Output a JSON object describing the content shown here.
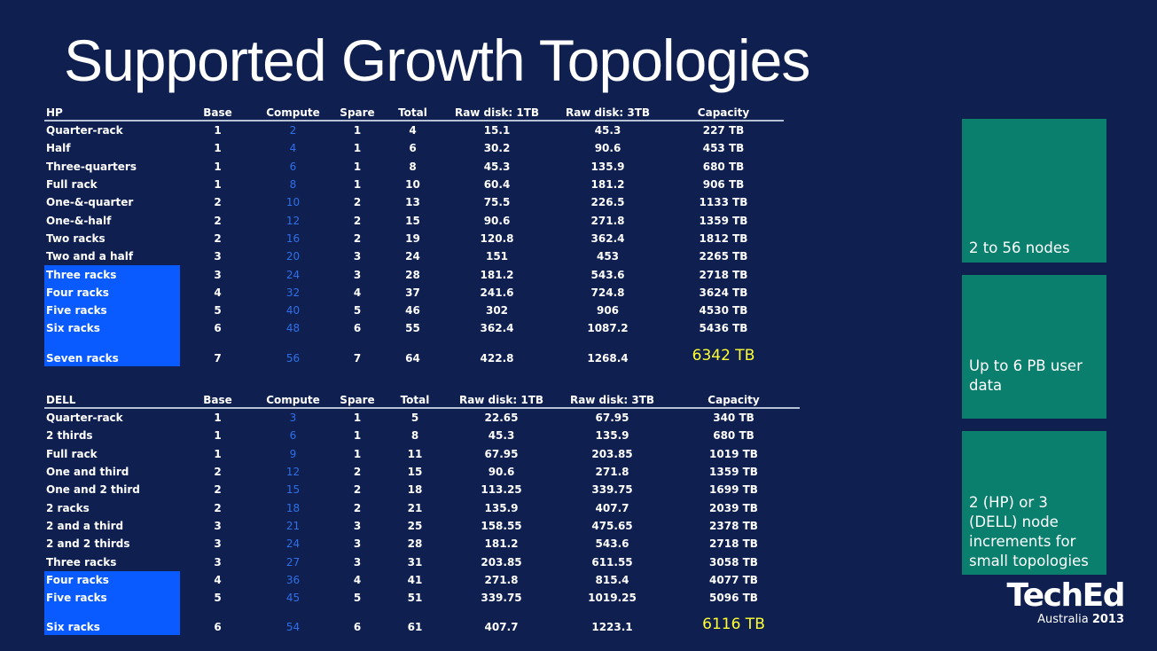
{
  "title": "Supported Growth Topologies",
  "hp": {
    "headers": [
      "HP",
      "Base",
      "Compute",
      "Spare",
      "Total",
      "Raw disk: 1TB",
      "Raw disk: 3TB",
      "Capacity"
    ],
    "rows": [
      [
        "Quarter-rack",
        "1",
        "2",
        "1",
        "4",
        "15.1",
        "45.3",
        "227 TB"
      ],
      [
        "Half",
        "1",
        "4",
        "1",
        "6",
        "30.2",
        "90.6",
        "453 TB"
      ],
      [
        "Three-quarters",
        "1",
        "6",
        "1",
        "8",
        "45.3",
        "135.9",
        "680 TB"
      ],
      [
        "Full rack",
        "1",
        "8",
        "1",
        "10",
        "60.4",
        "181.2",
        "906 TB"
      ],
      [
        "One-&-quarter",
        "2",
        "10",
        "2",
        "13",
        "75.5",
        "226.5",
        "1133 TB"
      ],
      [
        "One-&-half",
        "2",
        "12",
        "2",
        "15",
        "90.6",
        "271.8",
        "1359 TB"
      ],
      [
        "Two racks",
        "2",
        "16",
        "2",
        "19",
        "120.8",
        "362.4",
        "1812 TB"
      ],
      [
        "Two and a half",
        "3",
        "20",
        "3",
        "24",
        "151",
        "453",
        "2265 TB"
      ],
      [
        "Three racks",
        "3",
        "24",
        "3",
        "28",
        "181.2",
        "543.6",
        "2718 TB"
      ],
      [
        "Four racks",
        "4",
        "32",
        "4",
        "37",
        "241.6",
        "724.8",
        "3624 TB"
      ],
      [
        "Five racks",
        "5",
        "40",
        "5",
        "46",
        "302",
        "906",
        "4530 TB"
      ],
      [
        "Six racks",
        "6",
        "48",
        "6",
        "55",
        "362.4",
        "1087.2",
        "5436 TB"
      ],
      [
        "Seven racks",
        "7",
        "56",
        "7",
        "64",
        "422.8",
        "1268.4",
        "6342 TB"
      ]
    ]
  },
  "dell": {
    "headers": [
      "DELL",
      "Base",
      "Compute",
      "Spare",
      "Total",
      "Raw disk: 1TB",
      "Raw disk: 3TB",
      "Capacity"
    ],
    "rows": [
      [
        "Quarter-rack",
        "1",
        "3",
        "1",
        "5",
        "22.65",
        "67.95",
        "340 TB"
      ],
      [
        "2 thirds",
        "1",
        "6",
        "1",
        "8",
        "45.3",
        "135.9",
        "680 TB"
      ],
      [
        "Full rack",
        "1",
        "9",
        "1",
        "11",
        "67.95",
        "203.85",
        "1019 TB"
      ],
      [
        "One and third",
        "2",
        "12",
        "2",
        "15",
        "90.6",
        "271.8",
        "1359 TB"
      ],
      [
        "One and 2 third",
        "2",
        "15",
        "2",
        "18",
        "113.25",
        "339.75",
        "1699 TB"
      ],
      [
        "2 racks",
        "2",
        "18",
        "2",
        "21",
        "135.9",
        "407.7",
        "2039 TB"
      ],
      [
        "2 and a third",
        "3",
        "21",
        "3",
        "25",
        "158.55",
        "475.65",
        "2378 TB"
      ],
      [
        "2 and 2 thirds",
        "3",
        "24",
        "3",
        "28",
        "181.2",
        "543.6",
        "2718 TB"
      ],
      [
        "Three racks",
        "3",
        "27",
        "3",
        "31",
        "203.85",
        "611.55",
        "3058 TB"
      ],
      [
        "Four racks",
        "4",
        "36",
        "4",
        "41",
        "271.8",
        "815.4",
        "4077 TB"
      ],
      [
        "Five racks",
        "5",
        "45",
        "5",
        "51",
        "339.75",
        "1019.25",
        "5096 TB"
      ],
      [
        "Six racks",
        "6",
        "54",
        "6",
        "61",
        "407.7",
        "1223.1",
        "6116 TB"
      ]
    ]
  },
  "tiles": {
    "nodes": "2 to 56 nodes",
    "user_data": "Up to 6 PB user data",
    "increments": "2 (HP) or 3 (DELL) node increments for small topologies"
  },
  "logo": {
    "brand": "TechEd",
    "region": "Australia",
    "year": "2013"
  },
  "colors": {
    "background": "#0f2050",
    "tile": "#0a7f6e",
    "highlight": "#0a5bff",
    "compute_text": "#2f6fe8",
    "total_capacity": "#ffff33"
  }
}
